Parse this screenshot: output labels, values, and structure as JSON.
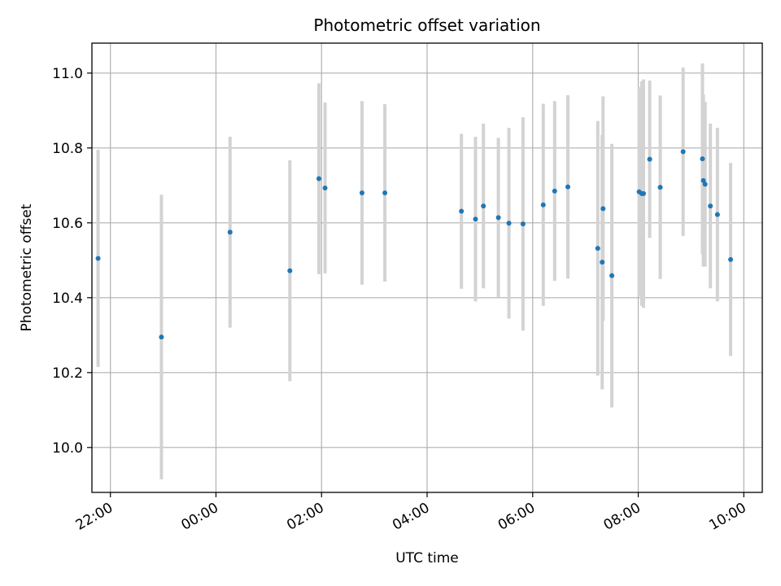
{
  "chart_data": {
    "type": "scatter",
    "title": "Photometric offset variation",
    "xlabel": "UTC time",
    "ylabel": "Photometric offset",
    "x_axis_kind": "time",
    "x_tick_labels": [
      "22:00",
      "00:00",
      "02:00",
      "04:00",
      "06:00",
      "08:00",
      "10:00"
    ],
    "x_tick_hours": [
      -2,
      0,
      2,
      4,
      6,
      8,
      10
    ],
    "xlim_hours": [
      -2.35,
      10.35
    ],
    "y_ticks": [
      10.0,
      10.2,
      10.4,
      10.6,
      10.8,
      11.0
    ],
    "y_tick_labels": [
      "10.0",
      "10.2",
      "10.4",
      "10.6",
      "10.8",
      "11.0"
    ],
    "ylim": [
      9.88,
      11.08
    ],
    "grid": true,
    "colors": {
      "points": "#1f77b4",
      "errorbars": "#d3d3d3",
      "grid": "#b0b0b0"
    },
    "series": [
      {
        "points": [
          {
            "t": "21:46",
            "y": 10.505,
            "err": 0.29
          },
          {
            "t": "22:58",
            "y": 10.295,
            "err": 0.38
          },
          {
            "t": "00:16",
            "y": 10.575,
            "err": 0.255
          },
          {
            "t": "01:24",
            "y": 10.472,
            "err": 0.295
          },
          {
            "t": "01:57",
            "y": 10.718,
            "err": 0.255
          },
          {
            "t": "02:04",
            "y": 10.693,
            "err": 0.228
          },
          {
            "t": "02:46",
            "y": 10.68,
            "err": 0.245
          },
          {
            "t": "03:12",
            "y": 10.68,
            "err": 0.237
          },
          {
            "t": "04:39",
            "y": 10.631,
            "err": 0.207
          },
          {
            "t": "04:55",
            "y": 10.61,
            "err": 0.22
          },
          {
            "t": "05:04",
            "y": 10.645,
            "err": 0.22
          },
          {
            "t": "05:21",
            "y": 10.614,
            "err": 0.213
          },
          {
            "t": "05:33",
            "y": 10.599,
            "err": 0.255
          },
          {
            "t": "05:49",
            "y": 10.597,
            "err": 0.285
          },
          {
            "t": "06:12",
            "y": 10.648,
            "err": 0.27
          },
          {
            "t": "06:25",
            "y": 10.685,
            "err": 0.24
          },
          {
            "t": "06:40",
            "y": 10.696,
            "err": 0.245
          },
          {
            "t": "07:14",
            "y": 10.532,
            "err": 0.34
          },
          {
            "t": "07:19",
            "y": 10.495,
            "err": 0.34
          },
          {
            "t": "07:20",
            "y": 10.638,
            "err": 0.3
          },
          {
            "t": "07:30",
            "y": 10.459,
            "err": 0.352
          },
          {
            "t": "08:01",
            "y": 10.683,
            "err": 0.28
          },
          {
            "t": "08:04",
            "y": 10.678,
            "err": 0.3
          },
          {
            "t": "08:06",
            "y": 10.678,
            "err": 0.305
          },
          {
            "t": "08:13",
            "y": 10.77,
            "err": 0.21
          },
          {
            "t": "08:25",
            "y": 10.695,
            "err": 0.245
          },
          {
            "t": "08:51",
            "y": 10.79,
            "err": 0.225
          },
          {
            "t": "09:13",
            "y": 10.771,
            "err": 0.255
          },
          {
            "t": "09:14",
            "y": 10.713,
            "err": 0.23
          },
          {
            "t": "09:16",
            "y": 10.703,
            "err": 0.22
          },
          {
            "t": "09:22",
            "y": 10.645,
            "err": 0.22
          },
          {
            "t": "09:30",
            "y": 10.622,
            "err": 0.232
          },
          {
            "t": "09:45",
            "y": 10.502,
            "err": 0.258
          }
        ]
      }
    ]
  }
}
